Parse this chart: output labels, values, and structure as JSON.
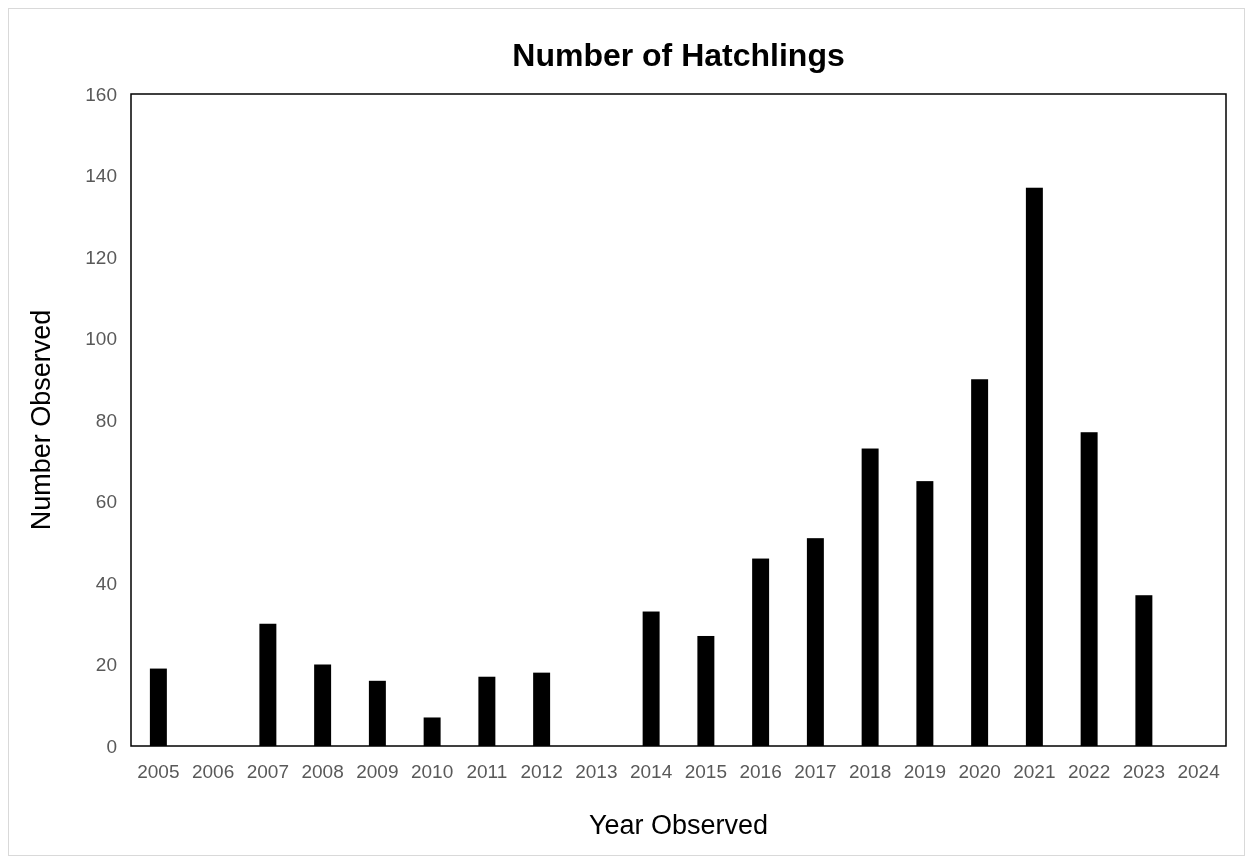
{
  "chart_data": {
    "type": "bar",
    "title": "Number of Hatchlings",
    "xlabel": "Year Observed",
    "ylabel": "Number Observed",
    "categories": [
      "2005",
      "2006",
      "2007",
      "2008",
      "2009",
      "2010",
      "2011",
      "2012",
      "2013",
      "2014",
      "2015",
      "2016",
      "2017",
      "2018",
      "2019",
      "2020",
      "2021",
      "2022",
      "2023",
      "2024"
    ],
    "values": [
      19,
      null,
      30,
      20,
      16,
      7,
      17,
      18,
      null,
      33,
      27,
      46,
      51,
      73,
      65,
      90,
      137,
      77,
      37,
      null
    ],
    "color": "#000000",
    "ylim": [
      0,
      160
    ],
    "yticks": [
      0,
      20,
      40,
      60,
      80,
      100,
      120,
      140,
      160
    ],
    "grid": false
  }
}
